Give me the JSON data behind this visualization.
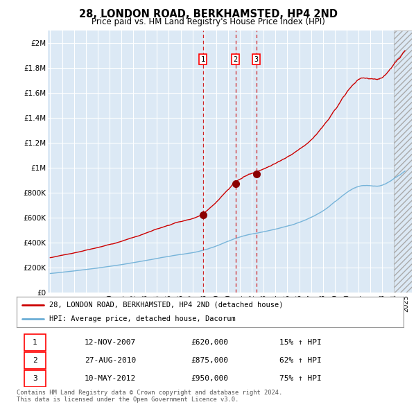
{
  "title": "28, LONDON ROAD, BERKHAMSTED, HP4 2ND",
  "subtitle": "Price paid vs. HM Land Registry's House Price Index (HPI)",
  "ylabel_ticks": [
    "£0",
    "£200K",
    "£400K",
    "£600K",
    "£800K",
    "£1M",
    "£1.2M",
    "£1.4M",
    "£1.6M",
    "£1.8M",
    "£2M"
  ],
  "ytick_values": [
    0,
    200000,
    400000,
    600000,
    800000,
    1000000,
    1200000,
    1400000,
    1600000,
    1800000,
    2000000
  ],
  "ylim": [
    0,
    2100000
  ],
  "xlim_start": 1994.8,
  "xlim_end": 2025.5,
  "background_color": "#dce9f5",
  "grid_color": "#ffffff",
  "sale_dates_year": [
    2007.875,
    2010.625,
    2012.375
  ],
  "sale_prices": [
    620000,
    875000,
    950000
  ],
  "sale_labels": [
    "1",
    "2",
    "3"
  ],
  "legend_line1": "28, LONDON ROAD, BERKHAMSTED, HP4 2ND (detached house)",
  "legend_line2": "HPI: Average price, detached house, Dacorum",
  "table_rows": [
    [
      "1",
      "12-NOV-2007",
      "£620,000",
      "15% ↑ HPI"
    ],
    [
      "2",
      "27-AUG-2010",
      "£875,000",
      "62% ↑ HPI"
    ],
    [
      "3",
      "10-MAY-2012",
      "£950,000",
      "75% ↑ HPI"
    ]
  ],
  "footer": "Contains HM Land Registry data © Crown copyright and database right 2024.\nThis data is licensed under the Open Government Licence v3.0.",
  "hpi_color": "#6baed6",
  "price_color": "#cc0000",
  "vline_color": "#cc0000",
  "marker_color": "#8b0000",
  "hatch_start": 2024.0
}
